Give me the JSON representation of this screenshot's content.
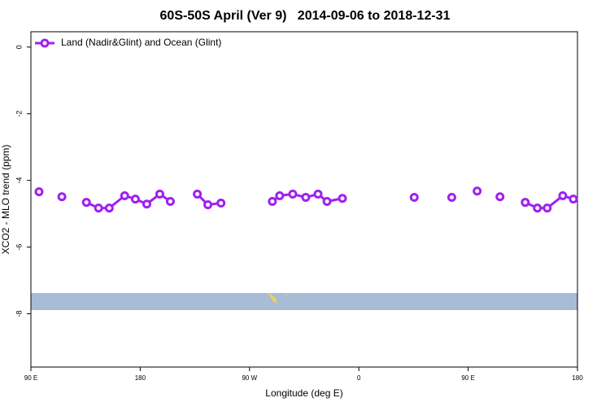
{
  "chart_data": {
    "type": "line",
    "title": "60S-50S April (Ver 9)   2014-09-06 to 2018-12-31",
    "x_label": "Longitude (deg E)",
    "y_label": "XCO2 - MLO trend (ppm)",
    "xlim": [
      90,
      540
    ],
    "xticks": [
      {
        "value": 90,
        "label": "90 E"
      },
      180,
      {
        "value": 270,
        "label": "90 W"
      },
      {
        "value": 360,
        "label": "0"
      },
      {
        "value": 450,
        "label": "90 E"
      },
      {
        "value": 540,
        "label": "180"
      }
    ],
    "ylim": [
      -9.6,
      0.46
    ],
    "yticks": [
      0,
      -2,
      -4,
      -6,
      -8
    ],
    "legend": "topleft",
    "series": [
      {
        "name": "Land (Nadir&Glint) and Ocean (Glint)",
        "color": "#a020f0",
        "x": [
          96.7,
          null,
          115.5,
          null,
          135.7,
          145.7,
          154.5,
          167.2,
          176,
          185.4,
          196.1,
          204.8,
          null,
          227,
          235.7,
          246.5,
          null,
          288.8,
          294.8,
          305.6,
          316.3,
          326.4,
          333.8,
          346.5,
          null,
          405.6,
          null,
          436.5,
          null,
          457.4,
          null,
          476.2,
          null,
          497,
          507,
          515.1,
          527.9,
          536.6
        ],
        "values": [
          -4.34,
          null,
          -4.49,
          null,
          -4.66,
          -4.83,
          -4.83,
          -4.46,
          -4.56,
          -4.71,
          -4.41,
          -4.63,
          null,
          -4.41,
          -4.73,
          -4.68,
          null,
          -4.63,
          -4.46,
          -4.41,
          -4.51,
          -4.41,
          -4.63,
          -4.54,
          null,
          -4.51,
          null,
          -4.51,
          null,
          -4.32,
          null,
          -4.49,
          null,
          -4.66,
          -4.83,
          -4.83,
          -4.46,
          -4.56
        ]
      }
    ]
  }
}
